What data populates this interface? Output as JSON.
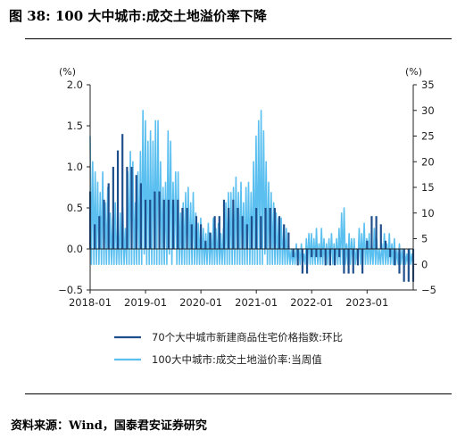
{
  "figure": {
    "title": "图 38: 100 大中城市:成交土地溢价率下降",
    "source": "资料来源：Wind，国泰君安证券研究"
  },
  "chart_data": {
    "type": "bar+line",
    "left_axis": {
      "unit": "(%)",
      "ylim": [
        -0.5,
        2.0
      ],
      "ticks": [
        "2.0",
        "1.5",
        "1.0",
        "0.5",
        "0.0",
        "−0.5"
      ]
    },
    "right_axis": {
      "unit": "(%)",
      "ylim": [
        -5,
        35
      ],
      "ticks": [
        "35",
        "30",
        "25",
        "20",
        "15",
        "10",
        "5",
        "0",
        "−5"
      ]
    },
    "x_axis": {
      "tick_labels": [
        "2018-01",
        "2019-01",
        "2020-01",
        "2021-01",
        "2022-01",
        "2023-01"
      ]
    },
    "legend": {
      "placement": "bottom",
      "entries": [
        "70个大中城市新建商品住宅价格指数:环比",
        "100大中城市:成交土地溢价率:当周值"
      ]
    },
    "colors": {
      "bars": "#1f4e8c",
      "line": "#5bc0f0"
    },
    "series": [
      {
        "name": "70个大中城市新建商品住宅价格指数:环比",
        "axis": "left",
        "kind": "bar",
        "x": [
          "2018-01",
          "2018-02",
          "2018-03",
          "2018-04",
          "2018-05",
          "2018-06",
          "2018-07",
          "2018-08",
          "2018-09",
          "2018-10",
          "2018-11",
          "2018-12",
          "2019-01",
          "2019-02",
          "2019-03",
          "2019-04",
          "2019-05",
          "2019-06",
          "2019-07",
          "2019-08",
          "2019-09",
          "2019-10",
          "2019-11",
          "2019-12",
          "2020-01",
          "2020-02",
          "2020-03",
          "2020-04",
          "2020-05",
          "2020-06",
          "2020-07",
          "2020-08",
          "2020-09",
          "2020-10",
          "2020-11",
          "2020-12",
          "2021-01",
          "2021-02",
          "2021-03",
          "2021-04",
          "2021-05",
          "2021-06",
          "2021-07",
          "2021-08",
          "2021-09",
          "2021-10",
          "2021-11",
          "2021-12",
          "2022-01",
          "2022-02",
          "2022-03",
          "2022-04",
          "2022-05",
          "2022-06",
          "2022-07",
          "2022-08",
          "2022-09",
          "2022-10",
          "2022-11",
          "2022-12",
          "2023-01",
          "2023-02",
          "2023-03",
          "2023-04",
          "2023-05",
          "2023-06",
          "2023-07",
          "2023-08",
          "2023-09",
          "2023-10",
          "2023-11"
        ],
        "values": [
          0.7,
          0.3,
          0.4,
          0.6,
          0.8,
          1.0,
          1.2,
          1.4,
          1.0,
          1.0,
          0.9,
          0.8,
          0.6,
          0.6,
          0.7,
          0.7,
          0.6,
          0.6,
          0.6,
          0.6,
          0.5,
          0.5,
          0.3,
          0.4,
          0.3,
          0.1,
          0.2,
          0.4,
          0.4,
          0.6,
          0.5,
          0.6,
          0.5,
          0.4,
          0.3,
          0.4,
          0.5,
          0.4,
          0.5,
          0.5,
          0.5,
          0.4,
          0.3,
          0.2,
          -0.1,
          -0.2,
          -0.3,
          -0.3,
          -0.1,
          -0.1,
          -0.1,
          -0.2,
          -0.2,
          -0.2,
          -0.1,
          -0.3,
          -0.3,
          -0.3,
          -0.2,
          -0.3,
          0.1,
          0.4,
          0.4,
          0.3,
          0.1,
          -0.1,
          -0.2,
          -0.3,
          -0.4,
          -0.4,
          -0.4
        ]
      },
      {
        "name": "100大中城市:成交土地溢价率:当周值",
        "axis": "right",
        "kind": "line",
        "x_start": "2018-01",
        "x_step": "1 week",
        "values": [
          25,
          0,
          20,
          0,
          18,
          0,
          16,
          0,
          14,
          0,
          18,
          0,
          12,
          0,
          15,
          0,
          10,
          0,
          9,
          0,
          12,
          0,
          8,
          0,
          10,
          0,
          11,
          0,
          7,
          0,
          18,
          0,
          22,
          0,
          20,
          0,
          12,
          0,
          18,
          0,
          22,
          0,
          30,
          2,
          28,
          0,
          24,
          0,
          26,
          0,
          24,
          0,
          28,
          0,
          28,
          0,
          20,
          0,
          15,
          0,
          16,
          0,
          26,
          2,
          24,
          0,
          16,
          3,
          18,
          0,
          18,
          0,
          10,
          0,
          12,
          0,
          14,
          0,
          15,
          0,
          12,
          0,
          14,
          0,
          10,
          0,
          8,
          0,
          9,
          0,
          7,
          0,
          6,
          0,
          8,
          0,
          6,
          0,
          9,
          0,
          7,
          0,
          8,
          0,
          6,
          0,
          7,
          0,
          12,
          0,
          14,
          0,
          14,
          0,
          15,
          0,
          17,
          0,
          14,
          0,
          16,
          0,
          12,
          0,
          15,
          0,
          16,
          0,
          14,
          0,
          20,
          0,
          25,
          0,
          28,
          0,
          30,
          0,
          26,
          2,
          20,
          0,
          16,
          0,
          14,
          0,
          12,
          0,
          10,
          0,
          9,
          0,
          9,
          0,
          7,
          0,
          7,
          0,
          4,
          0,
          3,
          0,
          3,
          0,
          4,
          0,
          3,
          0,
          4,
          0,
          2,
          0,
          5,
          0,
          6,
          0,
          6,
          0,
          5,
          0,
          7,
          0,
          4,
          0,
          7,
          0,
          5,
          0,
          4,
          0,
          5,
          0,
          6,
          0,
          4,
          0,
          5,
          0,
          7,
          0,
          10,
          0,
          11,
          0,
          4,
          0,
          6,
          0,
          5,
          0,
          5,
          0,
          3,
          0,
          7,
          0,
          6,
          0,
          8,
          0,
          5,
          0,
          6,
          0,
          4,
          0,
          7,
          0,
          5,
          0,
          3,
          0,
          4,
          0,
          6,
          0,
          4,
          0,
          6,
          0,
          4,
          0,
          5,
          0,
          3,
          0,
          4,
          0,
          3,
          0,
          3,
          0,
          2,
          0,
          3,
          0,
          2,
          0
        ]
      }
    ]
  }
}
